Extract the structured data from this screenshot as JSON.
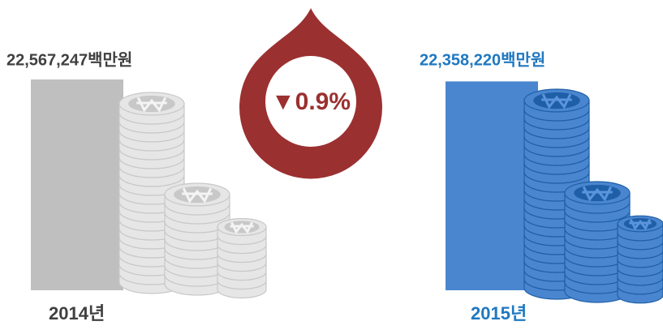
{
  "chart_data": {
    "type": "bar",
    "categories": [
      "2014년",
      "2015년"
    ],
    "values": [
      22567247,
      22358220
    ],
    "value_labels": [
      "22,567,247백만원",
      "22,358,220백만원"
    ],
    "colors": [
      "#bfbfbf",
      "#4a86cf"
    ],
    "label_colors": [
      "#404040",
      "#1f78c1"
    ],
    "annotation": "▼0.9%",
    "annotation_color": "#9b3030"
  }
}
